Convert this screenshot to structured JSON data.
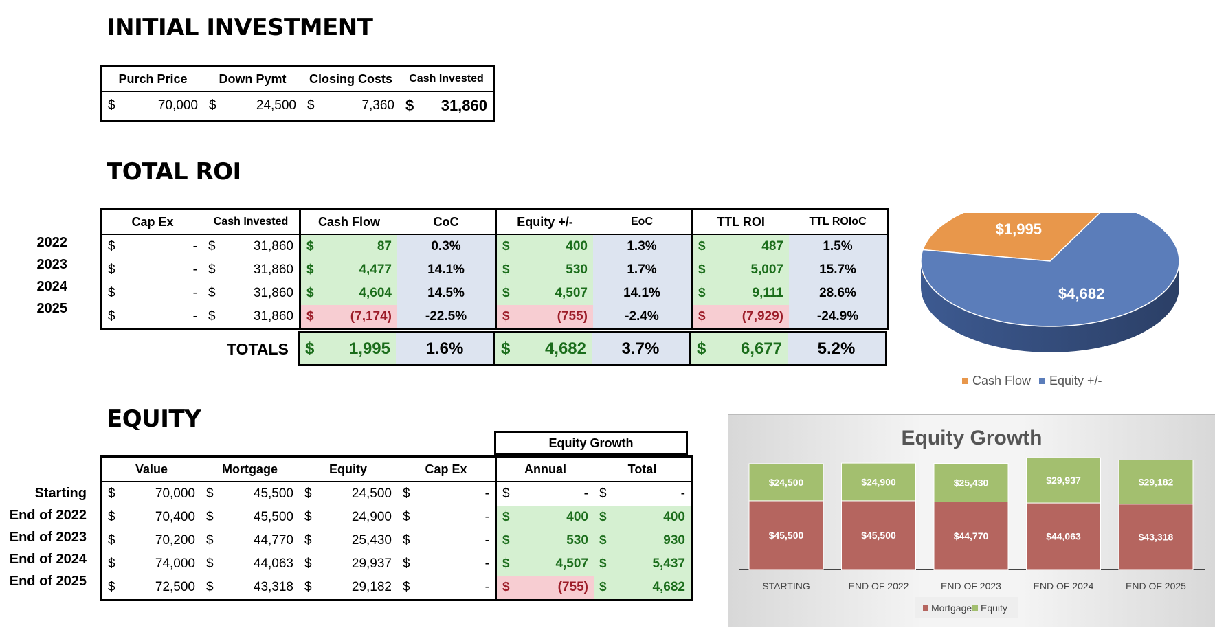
{
  "initial_investment": {
    "title": "INITIAL INVESTMENT",
    "headers": [
      "Purch Price",
      "Down Pymt",
      "Closing Costs",
      "Cash Invested"
    ],
    "values": [
      "70,000",
      "24,500",
      "7,360",
      "31,860"
    ],
    "currency": "$"
  },
  "total_roi": {
    "title": "TOTAL ROI",
    "headers": [
      "Cap Ex",
      "Cash Invested",
      "Cash Flow",
      "CoC",
      "Equity +/-",
      "EoC",
      "TTL ROI",
      "TTL ROIoC"
    ],
    "rows": [
      {
        "year": "2022",
        "capex": "-",
        "cash_invested": "31,860",
        "cash_flow": "87",
        "coc": "0.3%",
        "equity": "400",
        "eoc": "1.3%",
        "ttl_roi": "487",
        "ttl_roioc": "1.5%"
      },
      {
        "year": "2023",
        "capex": "-",
        "cash_invested": "31,860",
        "cash_flow": "4,477",
        "coc": "14.1%",
        "equity": "530",
        "eoc": "1.7%",
        "ttl_roi": "5,007",
        "ttl_roioc": "15.7%"
      },
      {
        "year": "2024",
        "capex": "-",
        "cash_invested": "31,860",
        "cash_flow": "4,604",
        "coc": "14.5%",
        "equity": "4,507",
        "eoc": "14.1%",
        "ttl_roi": "9,111",
        "ttl_roioc": "28.6%"
      },
      {
        "year": "2025",
        "capex": "-",
        "cash_invested": "31,860",
        "cash_flow": "(7,174)",
        "coc": "-22.5%",
        "equity": "(755)",
        "eoc": "-2.4%",
        "ttl_roi": "(7,929)",
        "ttl_roioc": "-24.9%"
      }
    ],
    "totals": {
      "label": "TOTALS",
      "cash_flow": "1,995",
      "coc": "1.6%",
      "equity": "4,682",
      "eoc": "3.7%",
      "ttl_roi": "6,677",
      "ttl_roioc": "5.2%"
    }
  },
  "equity": {
    "title": "EQUITY",
    "group_header": "Equity Growth",
    "headers": [
      "Value",
      "Mortgage",
      "Equity",
      "Cap Ex",
      "Annual",
      "Total"
    ],
    "rows": [
      {
        "label": "Starting",
        "value": "70,000",
        "mortgage": "45,500",
        "equity": "24,500",
        "capex": "-",
        "annual": "-",
        "total": "-"
      },
      {
        "label": "End of 2022",
        "value": "70,400",
        "mortgage": "45,500",
        "equity": "24,900",
        "capex": "-",
        "annual": "400",
        "total": "400"
      },
      {
        "label": "End of 2023",
        "value": "70,200",
        "mortgage": "44,770",
        "equity": "25,430",
        "capex": "-",
        "annual": "530",
        "total": "930"
      },
      {
        "label": "End of 2024",
        "value": "74,000",
        "mortgage": "44,063",
        "equity": "29,937",
        "capex": "-",
        "annual": "4,507",
        "total": "5,437"
      },
      {
        "label": "End of 2025",
        "value": "72,500",
        "mortgage": "43,318",
        "equity": "29,182",
        "capex": "-",
        "annual": "(755)",
        "total": "4,682"
      }
    ]
  },
  "chart_data": [
    {
      "type": "pie",
      "title": "",
      "labels": [
        "Cash Flow",
        "Equity +/-"
      ],
      "values": [
        1995,
        4682
      ],
      "data_labels": [
        "$1,995",
        "$4,682"
      ],
      "colors": [
        "#e8974b",
        "#5b7dba"
      ],
      "legend": "bottom"
    },
    {
      "type": "bar",
      "stacked": true,
      "title": "Equity Growth",
      "categories": [
        "STARTING",
        "END OF 2022",
        "END OF 2023",
        "END OF 2024",
        "END OF 2025"
      ],
      "series": [
        {
          "name": "Mortgage",
          "values": [
            45500,
            45500,
            44770,
            44063,
            43318
          ],
          "labels": [
            "$45,500",
            "$45,500",
            "$44,770",
            "$44,063",
            "$43,318"
          ],
          "color": "#b5655f"
        },
        {
          "name": "Equity",
          "values": [
            24500,
            24900,
            25430,
            29937,
            29182
          ],
          "labels": [
            "$24,500",
            "$24,900",
            "$25,430",
            "$29,937",
            "$29,182"
          ],
          "color": "#a3bf6f"
        }
      ],
      "legend": "bottom"
    }
  ]
}
